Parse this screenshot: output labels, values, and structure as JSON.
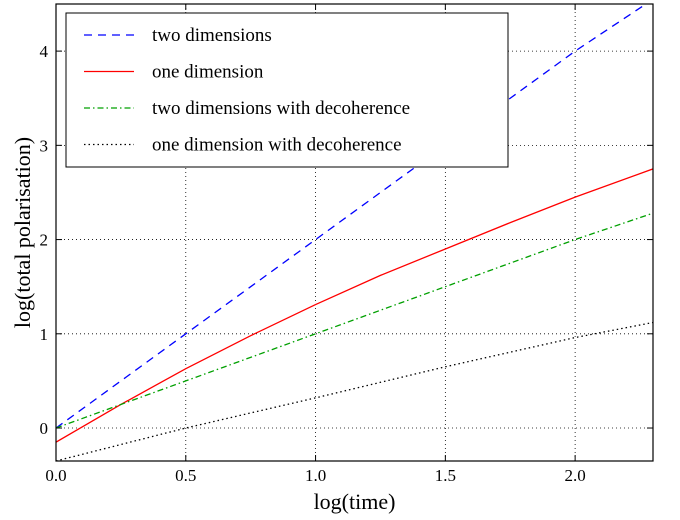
{
  "chart_data": {
    "type": "line",
    "xlabel": "log(time)",
    "ylabel": "log(total polarisation)",
    "xlim": [
      0.0,
      2.3
    ],
    "ylim": [
      -0.35,
      4.5
    ],
    "xticks": [
      0.0,
      0.5,
      1.0,
      1.5,
      2.0
    ],
    "xtick_labels": [
      "0.0",
      "0.5",
      "1.0",
      "1.5",
      "2.0"
    ],
    "yticks": [
      0,
      1,
      2,
      3,
      4
    ],
    "ytick_labels": [
      "0",
      "1",
      "2",
      "3",
      "4"
    ],
    "grid": true,
    "legend_position": "top-left",
    "series": [
      {
        "name": "two dimensions",
        "style": "dashed",
        "color": "#0000ff",
        "x": [
          0.0,
          0.5,
          1.0,
          1.5,
          2.0,
          2.3
        ],
        "y": [
          0.0,
          1.0,
          2.0,
          3.0,
          4.0,
          4.55
        ]
      },
      {
        "name": "one dimension",
        "style": "solid",
        "color": "#ff0000",
        "x": [
          0.0,
          0.25,
          0.5,
          0.75,
          1.0,
          1.25,
          1.5,
          1.75,
          2.0,
          2.3
        ],
        "y": [
          -0.15,
          0.25,
          0.63,
          0.98,
          1.31,
          1.62,
          1.9,
          2.18,
          2.45,
          2.75
        ]
      },
      {
        "name": "two dimensions with decoherence",
        "style": "dash-dot",
        "color": "#00a000",
        "x": [
          0.0,
          0.5,
          1.0,
          1.5,
          2.0,
          2.3
        ],
        "y": [
          0.0,
          0.5,
          1.0,
          1.5,
          2.0,
          2.28
        ]
      },
      {
        "name": "one dimension with decoherence",
        "style": "dotted",
        "color": "#000000",
        "x": [
          0.0,
          0.5,
          1.0,
          1.5,
          2.0,
          2.3
        ],
        "y": [
          -0.35,
          0.0,
          0.32,
          0.65,
          0.96,
          1.12
        ]
      }
    ]
  }
}
